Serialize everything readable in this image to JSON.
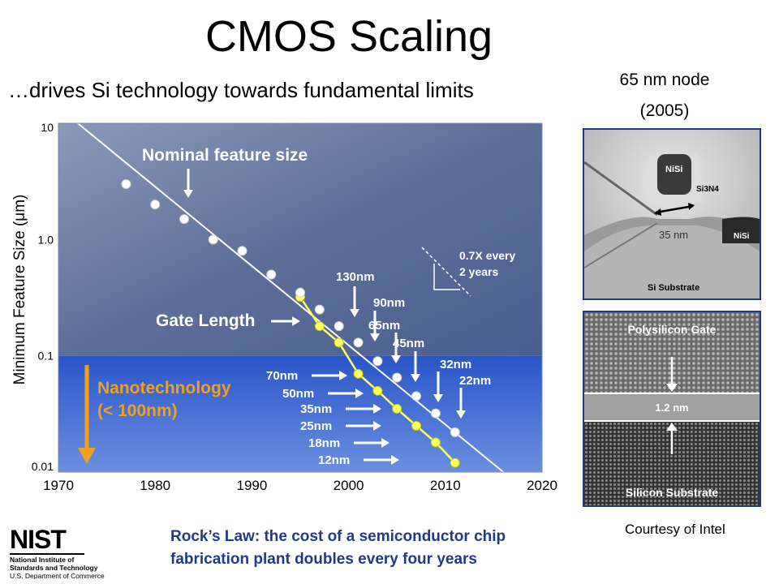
{
  "page": {
    "title": "CMOS Scaling",
    "subtitle": "…drives Si technology towards fundamental limits",
    "node_label_line1": "65 nm node",
    "node_label_line2": "(2005)",
    "courtesy": "Courtesy of Intel",
    "rocks_law_line1": "Rock’s Law: the cost of a semiconductor chip",
    "rocks_law_line2": "fabrication plant doubles every four years",
    "nist": {
      "logo_text": "NIST",
      "line1": "National Institute of",
      "line2": "Standards and Technology",
      "line3": "U.S. Department of Commerce"
    }
  },
  "tem_top": {
    "nisi_top": "NiSi",
    "si3n4": "Si3N4",
    "dimension": "35 nm",
    "nisi_right": "NiSi",
    "substrate": "Si Substrate"
  },
  "tem_bottom": {
    "gate": "Polysilicon Gate",
    "thickness": "1.2 nm",
    "substrate": "Silicon Substrate"
  },
  "chart_data": {
    "type": "scatter",
    "ylabel": "Minimum Feature Size (μm)",
    "y_scale": "log",
    "xlim": [
      1970,
      2020
    ],
    "ylim": [
      0.01,
      10
    ],
    "x_ticks": [
      "1970",
      "1980",
      "1990",
      "2000",
      "2010",
      "2020"
    ],
    "y_ticks": [
      "10",
      "1.0",
      "0.1",
      "0.01"
    ],
    "series": [
      {
        "name": "Nominal feature size",
        "color": "#ffffff",
        "x": [
          1977,
          1980,
          1983,
          1986,
          1989,
          1992,
          1995,
          1997,
          1999,
          2001,
          2003,
          2005,
          2007,
          2009,
          2011
        ],
        "y": [
          3.0,
          2.0,
          1.5,
          1.0,
          0.8,
          0.5,
          0.35,
          0.25,
          0.18,
          0.13,
          0.09,
          0.065,
          0.045,
          0.032,
          0.022
        ]
      },
      {
        "name": "Gate Length",
        "color": "#ffff66",
        "x": [
          1995,
          1997,
          1999,
          2001,
          2003,
          2005,
          2007,
          2009,
          2011
        ],
        "y": [
          0.32,
          0.18,
          0.13,
          0.07,
          0.05,
          0.035,
          0.025,
          0.018,
          0.012
        ]
      }
    ],
    "trend_line": {
      "label": "0.7X every 2 years",
      "from": [
        1972,
        10
      ],
      "to": [
        2016,
        0.01
      ]
    },
    "annotations": {
      "nominal_title": "Nominal feature size",
      "gate_title": "Gate Length",
      "nano_line1": "Nanotechnology",
      "nano_line2": "(< 100nm)",
      "trend_line1": "0.7X every",
      "trend_line2": "2 years",
      "nominal_labels": [
        "130nm",
        "90nm",
        "65nm",
        "45nm",
        "32nm",
        "22nm"
      ],
      "gate_labels": [
        "70nm",
        "50nm",
        "35nm",
        "25nm",
        "18nm",
        "12nm"
      ]
    },
    "nanotech_threshold_um": 0.1,
    "colors": {
      "upper_bg": "#5a6e96",
      "lower_bg": "#4a72c8",
      "gate_line": "#ffff66",
      "nano_text": "#f0a020"
    }
  }
}
